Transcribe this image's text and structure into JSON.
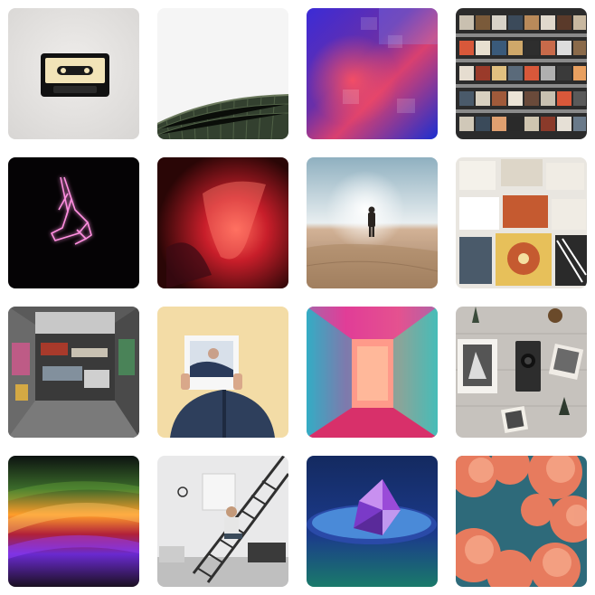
{
  "gallery": {
    "photos": [
      {
        "subject": "cassette-tape",
        "colors": {
          "bg": "#e6e4e2",
          "accent": "#f2e4b8"
        }
      },
      {
        "subject": "domed-building-roof",
        "colors": {
          "bg": "#f4f4f4",
          "accent": "#3c4a3a"
        }
      },
      {
        "subject": "blue-red-prism-abstract",
        "colors": {
          "bg": "#2a2f8c",
          "accent": "#e23a5c"
        }
      },
      {
        "subject": "record-store-shelves",
        "colors": {
          "bg": "#2b2b2b",
          "accent": "#d8583a"
        }
      },
      {
        "subject": "neon-praying-hands",
        "colors": {
          "bg": "#050305",
          "accent": "#ff6fd2"
        }
      },
      {
        "subject": "red-light-blur",
        "colors": {
          "bg": "#2a0606",
          "accent": "#ff4a40"
        }
      },
      {
        "subject": "desert-figure-sunset",
        "colors": {
          "bg": "#b9cbd3",
          "accent": "#c49a78"
        }
      },
      {
        "subject": "vinyl-record-crates",
        "colors": {
          "bg": "#e9e6e0",
          "accent": "#c55a30"
        }
      },
      {
        "subject": "graffiti-alley",
        "colors": {
          "bg": "#5a5a5a",
          "accent": "#b43a2a"
        }
      },
      {
        "subject": "person-holding-photo",
        "colors": {
          "bg": "#f3dca6",
          "accent": "#2e3f5c"
        }
      },
      {
        "subject": "neon-pink-hallway",
        "colors": {
          "bg": "#e33784",
          "accent": "#41b9b9"
        }
      },
      {
        "subject": "vintage-camera-flatlay",
        "colors": {
          "bg": "#c6c2bd",
          "accent": "#2d2d2d"
        }
      },
      {
        "subject": "rainbow-light-streaks",
        "colors": {
          "bg": "#1a1020",
          "accent": "#ff9d2a"
        }
      },
      {
        "subject": "loft-interior-stairs",
        "colors": {
          "bg": "#e9e9ea",
          "accent": "#2f2f2f"
        }
      },
      {
        "subject": "crystal-on-blue-disc",
        "colors": {
          "bg": "#1b2d6b",
          "accent": "#9a4bd8"
        }
      },
      {
        "subject": "pink-clouds",
        "colors": {
          "bg": "#e77b5e",
          "accent": "#2e6a7a"
        }
      }
    ]
  }
}
